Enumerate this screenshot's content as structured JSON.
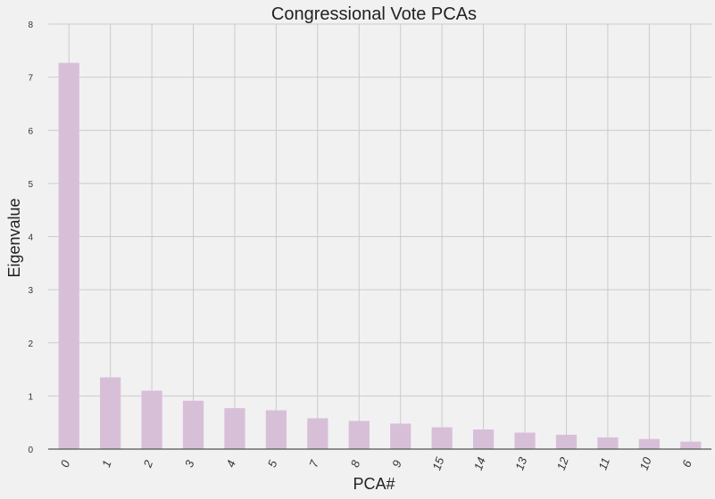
{
  "chart_data": {
    "type": "bar",
    "title": "Congressional Vote PCAs",
    "xlabel": "PCA#",
    "ylabel": "Eigenvalue",
    "categories": [
      "0",
      "1",
      "2",
      "3",
      "4",
      "5",
      "7",
      "8",
      "9",
      "15",
      "14",
      "13",
      "12",
      "11",
      "10",
      "6"
    ],
    "values": [
      7.27,
      1.35,
      1.1,
      0.91,
      0.77,
      0.73,
      0.58,
      0.53,
      0.48,
      0.41,
      0.37,
      0.31,
      0.27,
      0.22,
      0.19,
      0.14
    ],
    "ylim": [
      0,
      8
    ],
    "yticks": [
      "0",
      "1",
      "2",
      "3",
      "4",
      "5",
      "6",
      "7",
      "8"
    ],
    "grid": true,
    "colors": {
      "bar": "#d8bfd8",
      "background": "#f1f1f1",
      "grid": "#cbcbcb",
      "axis": "#555555"
    }
  }
}
